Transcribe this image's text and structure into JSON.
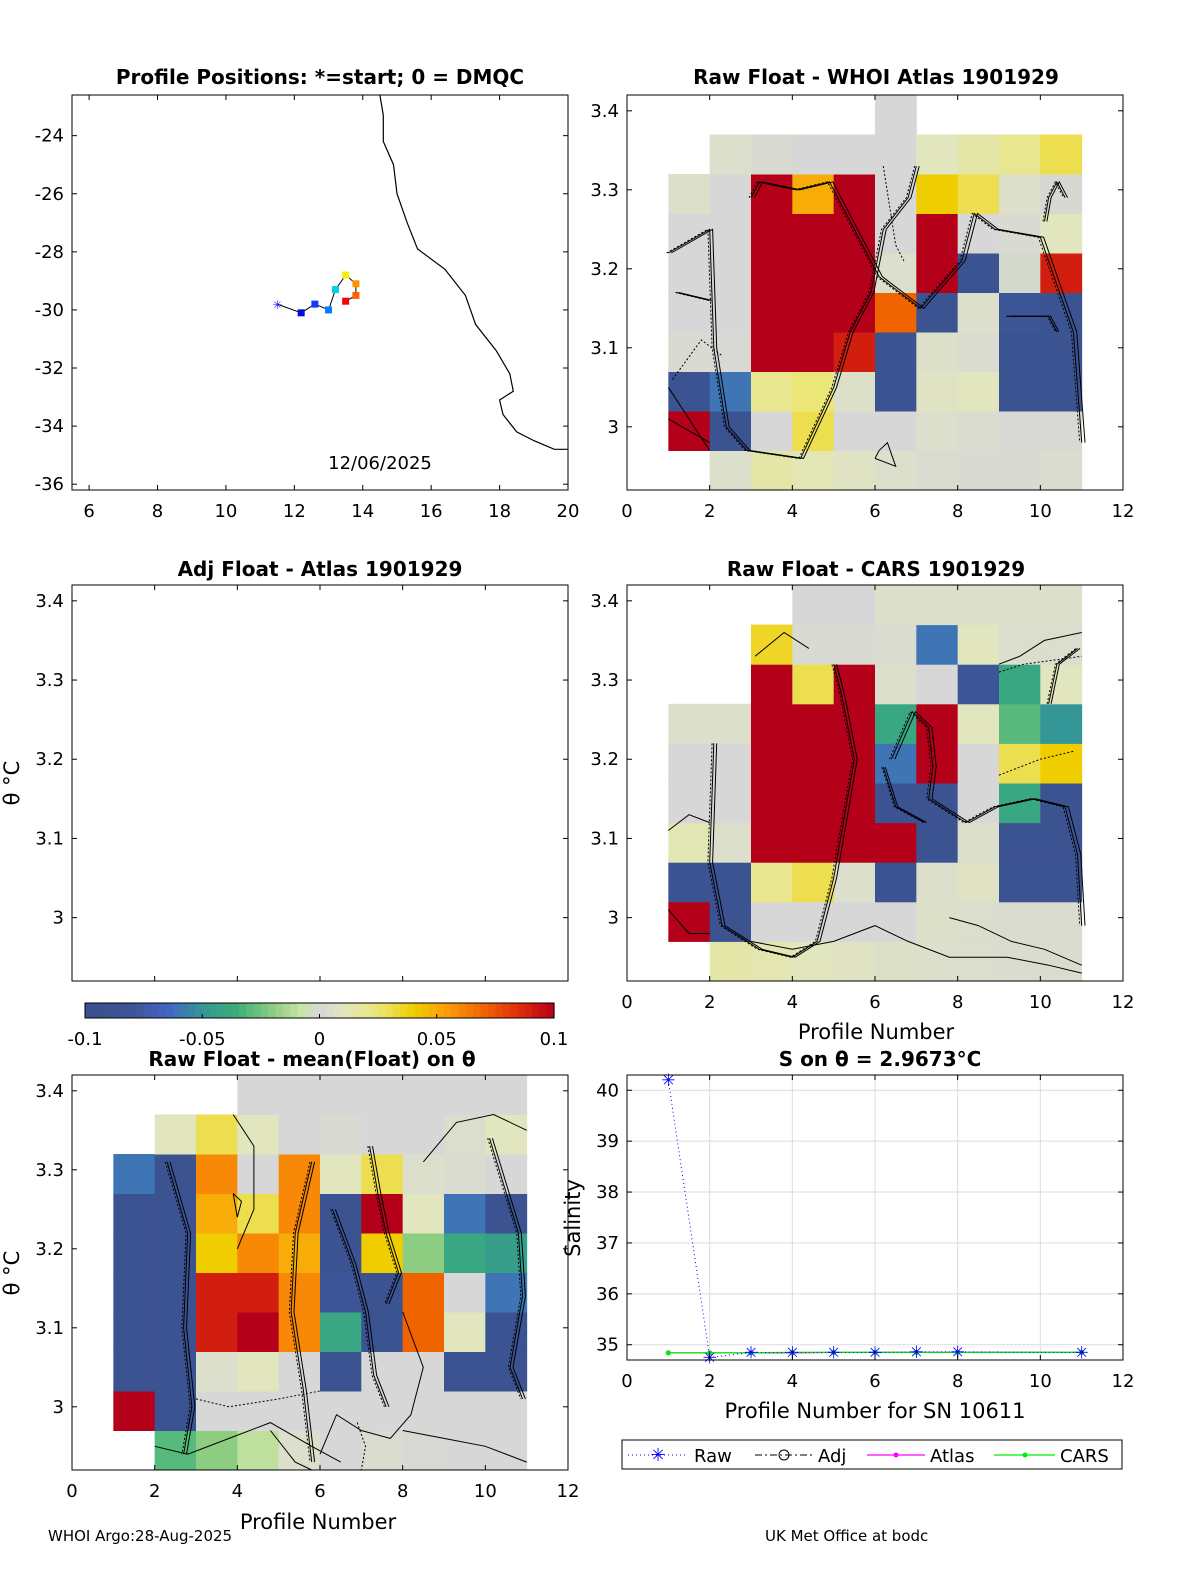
{
  "footer": {
    "left": "WHOI Argo:28-Aug-2025",
    "right": "UK Met Office at bodc"
  },
  "chart_data": [
    {
      "id": "map",
      "type": "scatter",
      "title": "Profile Positions: *=start; 0 = DMQC",
      "xlim": [
        5.5,
        20
      ],
      "ylim": [
        -36.2,
        -22.6
      ],
      "xticks": [
        6,
        8,
        10,
        12,
        14,
        16,
        18,
        20
      ],
      "yticks": [
        -24,
        -26,
        -28,
        -30,
        -32,
        -34,
        -36
      ],
      "annotation": "12/06/2025",
      "track": [
        [
          11.5,
          -29.8
        ],
        [
          12.2,
          -30.1
        ],
        [
          12.6,
          -29.8
        ],
        [
          13.0,
          -30.0
        ],
        [
          13.2,
          -29.3
        ],
        [
          13.5,
          -28.8
        ],
        [
          13.8,
          -29.1
        ],
        [
          13.8,
          -29.5
        ],
        [
          13.5,
          -29.7
        ]
      ],
      "track_colors": [
        "#1a1aff",
        "#0010d0",
        "#0a3cff",
        "#0080ff",
        "#00d0e0",
        "#f0f000",
        "#ff9000",
        "#ff6000",
        "#ff0000"
      ],
      "coastline": [
        [
          14.5,
          -22.6
        ],
        [
          14.6,
          -23.3
        ],
        [
          14.6,
          -24.2
        ],
        [
          14.9,
          -25.0
        ],
        [
          15.0,
          -26.0
        ],
        [
          15.3,
          -27.0
        ],
        [
          15.6,
          -27.9
        ],
        [
          16.4,
          -28.6
        ],
        [
          17.0,
          -29.5
        ],
        [
          17.3,
          -30.5
        ],
        [
          17.9,
          -31.4
        ],
        [
          18.3,
          -32.2
        ],
        [
          18.4,
          -32.8
        ],
        [
          18.0,
          -33.1
        ],
        [
          18.1,
          -33.6
        ],
        [
          18.5,
          -34.2
        ],
        [
          19.0,
          -34.5
        ],
        [
          19.6,
          -34.8
        ],
        [
          20.0,
          -34.8
        ]
      ]
    },
    {
      "id": "whoi_atlas",
      "type": "heatmap",
      "title": "Raw Float - WHOI Atlas  1901929",
      "xlabel": "",
      "ylabel": "",
      "xlim": [
        0,
        12
      ],
      "ylim": [
        2.92,
        3.42
      ],
      "xticks": [
        0,
        2,
        4,
        6,
        8,
        10,
        12
      ],
      "yticks": [
        3,
        3.1,
        3.2,
        3.3,
        3.4
      ],
      "x_edges": [
        1,
        2,
        3,
        4,
        5,
        6,
        7,
        8,
        9,
        10,
        11
      ],
      "y_edges": [
        2.92,
        2.97,
        3.02,
        3.07,
        3.12,
        3.17,
        3.22,
        3.27,
        3.32,
        3.37,
        3.42
      ],
      "values": [
        [
          null,
          0.005,
          0.015,
          0.012,
          0.008,
          0.005,
          0.003,
          0.002,
          0.002,
          0.003
        ],
        [
          0.1,
          -0.09,
          0.0,
          0.03,
          0.0,
          0.0,
          0.005,
          0.003,
          0.001,
          0.001
        ],
        [
          -0.09,
          -0.06,
          0.02,
          0.025,
          0.006,
          -0.09,
          0.008,
          0.01,
          -0.09,
          -0.09
        ],
        [
          0.002,
          0.001,
          0.1,
          0.1,
          0.09,
          -0.09,
          0.006,
          0.003,
          -0.09,
          -0.09
        ],
        [
          0.0,
          0.0,
          0.1,
          0.1,
          0.1,
          0.07,
          -0.09,
          0.005,
          -0.08,
          -0.09
        ],
        [
          0.0,
          0.0,
          0.1,
          0.1,
          0.1,
          0.005,
          0.1,
          -0.09,
          -0.002,
          0.09
        ],
        [
          0.0,
          0.0,
          0.1,
          0.1,
          0.1,
          0.0,
          0.1,
          0.0,
          0.002,
          0.01
        ],
        [
          0.005,
          0.0,
          0.1,
          0.05,
          0.1,
          0.0,
          0.04,
          0.03,
          0.005,
          -0.001
        ],
        [
          null,
          0.005,
          0.002,
          0.0,
          0.0,
          0.0,
          0.01,
          0.015,
          0.02,
          0.03
        ],
        [
          null,
          null,
          null,
          null,
          null,
          0.0,
          null,
          null,
          null,
          null
        ]
      ]
    },
    {
      "id": "adj_atlas",
      "type": "heatmap",
      "title": "Adj Float - Atlas  1901929",
      "ylabel": "θ °C",
      "ylim": [
        2.92,
        3.42
      ],
      "yticks": [
        3,
        3.1,
        3.2,
        3.3,
        3.4
      ],
      "values": []
    },
    {
      "id": "cars",
      "type": "heatmap",
      "title": "Raw Float - CARS  1901929",
      "xlabel": "Profile Number",
      "xlim": [
        0,
        12
      ],
      "ylim": [
        2.92,
        3.42
      ],
      "xticks": [
        0,
        2,
        4,
        6,
        8,
        10,
        12
      ],
      "yticks": [
        3,
        3.1,
        3.2,
        3.3,
        3.4
      ],
      "x_edges": [
        1,
        2,
        3,
        4,
        5,
        6,
        7,
        8,
        9,
        10,
        11
      ],
      "y_edges": [
        2.92,
        2.97,
        3.02,
        3.07,
        3.12,
        3.17,
        3.22,
        3.27,
        3.32,
        3.37,
        3.42
      ],
      "values": [
        [
          null,
          0.015,
          0.013,
          0.01,
          0.008,
          0.006,
          0.005,
          0.004,
          0.003,
          0.003
        ],
        [
          0.1,
          -0.09,
          0.0,
          0.0,
          0.0,
          0.0,
          0.006,
          0.004,
          0.003,
          0.003
        ],
        [
          -0.09,
          -0.09,
          0.02,
          0.03,
          0.005,
          -0.09,
          0.005,
          0.008,
          -0.09,
          -0.09
        ],
        [
          0.012,
          0.005,
          0.1,
          0.1,
          0.1,
          0.1,
          -0.09,
          0.005,
          -0.09,
          -0.09
        ],
        [
          0.0,
          0.0,
          0.1,
          0.1,
          0.1,
          -0.09,
          -0.09,
          0.0,
          -0.04,
          -0.09
        ],
        [
          0.0,
          0.0,
          0.1,
          0.1,
          0.1,
          -0.06,
          0.1,
          0.0,
          0.03,
          0.04
        ],
        [
          0.005,
          0.005,
          0.1,
          0.1,
          0.1,
          -0.04,
          0.1,
          0.01,
          -0.03,
          -0.05
        ],
        [
          null,
          null,
          0.1,
          0.03,
          0.1,
          0.005,
          0.0,
          -0.08,
          -0.04,
          0.01
        ],
        [
          null,
          null,
          0.035,
          0.002,
          0.002,
          0.003,
          -0.06,
          0.01,
          0.004,
          0.004
        ],
        [
          null,
          null,
          null,
          0.0,
          0.0,
          0.005,
          0.005,
          0.005,
          0.005,
          0.005
        ]
      ]
    },
    {
      "id": "mean_float",
      "type": "heatmap",
      "title": "Raw Float - mean(Float) on θ",
      "xlabel": "Profile Number",
      "ylabel": "θ °C",
      "xlim": [
        0,
        12
      ],
      "ylim": [
        2.92,
        3.42
      ],
      "xticks": [
        0,
        2,
        4,
        6,
        8,
        10,
        12
      ],
      "yticks": [
        3,
        3.1,
        3.2,
        3.3,
        3.4
      ],
      "x_edges": [
        1,
        2,
        3,
        4,
        5,
        6,
        7,
        8,
        9,
        10,
        11
      ],
      "y_edges": [
        2.92,
        2.97,
        3.02,
        3.07,
        3.12,
        3.17,
        3.22,
        3.27,
        3.32,
        3.37,
        3.42
      ],
      "values": [
        [
          null,
          -0.03,
          -0.02,
          -0.01,
          0.005,
          0.0,
          0.003,
          0.001,
          0.0,
          0.0
        ],
        [
          0.1,
          -0.09,
          0.0,
          0.0,
          0.0,
          0.0,
          0.0,
          0.0,
          0.0,
          0.0
        ],
        [
          -0.09,
          -0.09,
          0.005,
          0.01,
          0.0,
          -0.09,
          0.0,
          0.0,
          -0.09,
          -0.09
        ],
        [
          -0.09,
          -0.09,
          0.09,
          0.1,
          0.06,
          -0.04,
          -0.09,
          0.07,
          0.01,
          -0.09
        ],
        [
          -0.09,
          -0.09,
          0.09,
          0.09,
          0.06,
          -0.08,
          -0.09,
          0.07,
          0.0,
          -0.06
        ],
        [
          -0.09,
          -0.09,
          0.04,
          0.06,
          0.05,
          -0.09,
          0.04,
          -0.02,
          -0.04,
          -0.045
        ],
        [
          -0.09,
          -0.09,
          0.05,
          0.03,
          0.06,
          -0.09,
          0.1,
          0.01,
          -0.06,
          -0.09
        ],
        [
          -0.06,
          -0.09,
          0.06,
          0.0,
          0.06,
          0.01,
          0.03,
          0.005,
          0.003,
          0.0
        ],
        [
          null,
          0.01,
          0.03,
          0.01,
          0.0,
          0.002,
          0.0,
          0.0,
          0.004,
          0.01
        ],
        [
          null,
          null,
          null,
          0.0,
          0.0,
          0.0,
          0.0,
          0.0,
          0.0,
          0.0
        ]
      ]
    },
    {
      "id": "salinity",
      "type": "line",
      "title": "S on θ = 2.9673°C",
      "xlabel": "Profile Number for SN 10611",
      "ylabel": "Salinity",
      "xlim": [
        0,
        12
      ],
      "ylim": [
        34.7,
        40.3
      ],
      "xticks": [
        0,
        2,
        4,
        6,
        8,
        10,
        12
      ],
      "yticks": [
        35,
        36,
        37,
        38,
        39,
        40
      ],
      "x": [
        1,
        2,
        3,
        4,
        5,
        6,
        7,
        8,
        11
      ],
      "series": [
        {
          "name": "Raw",
          "color": "#0000ff",
          "values": [
            40.2,
            34.75,
            34.85,
            34.85,
            34.85,
            34.85,
            34.86,
            34.86,
            34.85
          ]
        },
        {
          "name": "Adj",
          "color": "#000000",
          "values": [
            null,
            null,
            null,
            null,
            null,
            null,
            null,
            null,
            null
          ]
        },
        {
          "name": "Atlas",
          "color": "#ff00ff",
          "values": [
            34.84,
            34.84,
            34.84,
            34.84,
            34.85,
            34.85,
            34.85,
            34.85,
            34.85
          ]
        },
        {
          "name": "CARS",
          "color": "#00ee00",
          "values": [
            34.84,
            34.84,
            34.84,
            34.85,
            34.85,
            34.85,
            34.85,
            34.85,
            34.85
          ]
        }
      ]
    }
  ],
  "colorbar": {
    "min": -0.1,
    "max": 0.1,
    "tick_labels": [
      "-0.1",
      "-0.05",
      "0",
      "0.05",
      "0.1"
    ],
    "tick_values": [
      -0.1,
      -0.05,
      0,
      0.05,
      0.1
    ]
  }
}
